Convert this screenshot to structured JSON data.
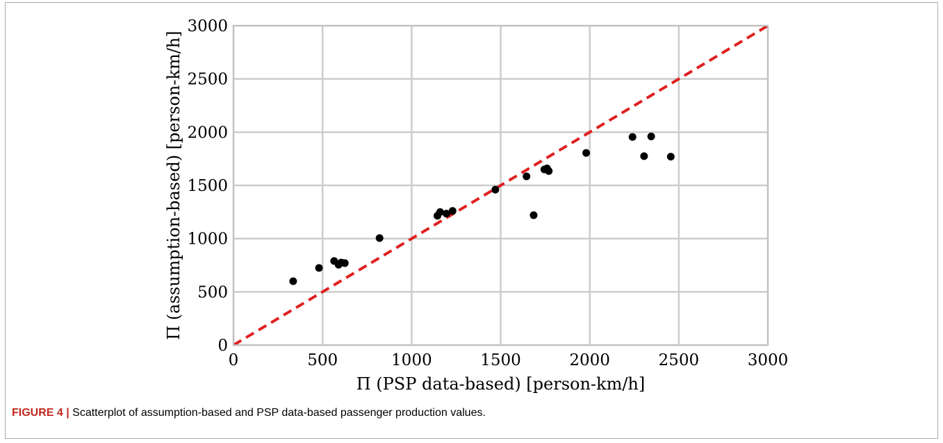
{
  "chart_data": {
    "type": "scatter",
    "xlabel": "Π (PSP data-based) [person-km/h]",
    "ylabel": "Π (assumption-based) [person-km/h]",
    "xlim": [
      0,
      3000
    ],
    "ylim": [
      0,
      3000
    ],
    "xticks": [
      0,
      500,
      1000,
      1500,
      2000,
      2500,
      3000
    ],
    "yticks": [
      0,
      500,
      1000,
      1500,
      2000,
      2500,
      3000
    ],
    "grid": true,
    "points": [
      [
        335,
        600
      ],
      [
        480,
        725
      ],
      [
        565,
        790
      ],
      [
        590,
        755
      ],
      [
        605,
        775
      ],
      [
        625,
        770
      ],
      [
        820,
        1005
      ],
      [
        1145,
        1215
      ],
      [
        1160,
        1250
      ],
      [
        1195,
        1235
      ],
      [
        1230,
        1260
      ],
      [
        1470,
        1460
      ],
      [
        1645,
        1585
      ],
      [
        1685,
        1220
      ],
      [
        1745,
        1650
      ],
      [
        1760,
        1660
      ],
      [
        1770,
        1635
      ],
      [
        1980,
        1805
      ],
      [
        2240,
        1955
      ],
      [
        2305,
        1775
      ],
      [
        2345,
        1960
      ],
      [
        2455,
        1770
      ]
    ],
    "reference_line": {
      "style": "dashed",
      "from": [
        0,
        0
      ],
      "to": [
        3000,
        3000
      ]
    },
    "colors": {
      "points": "#000000",
      "reference_line": "#e02020",
      "grid": "#cccccc",
      "axes": "#bfbfbf"
    }
  },
  "caption": {
    "label": "FIGURE 4 |",
    "text": " Scatterplot of assumption-based and PSP data-based passenger production values."
  }
}
